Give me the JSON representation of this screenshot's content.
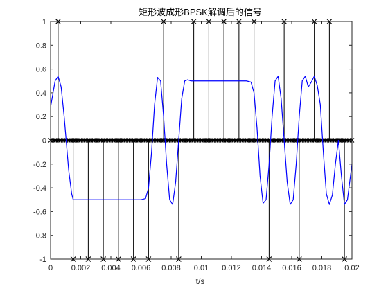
{
  "chart_data": {
    "type": "line",
    "title": "矩形波成形BPSK解调后的信号",
    "xlabel": "t/s",
    "ylabel": "",
    "xlim": [
      0,
      0.02
    ],
    "ylim": [
      -1,
      1
    ],
    "xticks": [
      "0",
      "0.002",
      "0.004",
      "0.006",
      "0.008",
      "0.01",
      "0.012",
      "0.014",
      "0.016",
      "0.018",
      "0.02"
    ],
    "yticks": [
      "1",
      "0.8",
      "0.6",
      "0.4",
      "0.2",
      "0",
      "-0.2",
      "-0.4",
      "-0.6",
      "-0.8",
      "-1"
    ],
    "grid": false,
    "series": [
      {
        "type": "line",
        "color": "#0000ff",
        "x": [
          0,
          0.0003,
          0.0005,
          0.0007,
          0.0009,
          0.001,
          0.0012,
          0.0014,
          0.0015,
          0.002,
          0.0025,
          0.003,
          0.004,
          0.005,
          0.006,
          0.0063,
          0.0065,
          0.0067,
          0.0069,
          0.0071,
          0.0073,
          0.0075,
          0.0077,
          0.0079,
          0.0081,
          0.0083,
          0.0085,
          0.0087,
          0.0089,
          0.0091,
          0.0093,
          0.0095,
          0.0098,
          0.01,
          0.011,
          0.012,
          0.013,
          0.0133,
          0.0135,
          0.0137,
          0.0139,
          0.0141,
          0.0143,
          0.0145,
          0.0147,
          0.0149,
          0.0151,
          0.0153,
          0.0155,
          0.0157,
          0.0159,
          0.0161,
          0.0163,
          0.0165,
          0.0167,
          0.0169,
          0.0171,
          0.0173,
          0.0175,
          0.0177,
          0.0179,
          0.0181,
          0.0183,
          0.0185,
          0.0187,
          0.0189,
          0.0191,
          0.0193,
          0.0195,
          0.0197,
          0.0199,
          0.02
        ],
        "y": [
          0.28,
          0.5,
          0.54,
          0.45,
          0.2,
          0.05,
          -0.25,
          -0.45,
          -0.5,
          -0.5,
          -0.5,
          -0.5,
          -0.5,
          -0.5,
          -0.5,
          -0.49,
          -0.4,
          -0.1,
          0.3,
          0.53,
          0.5,
          0.2,
          -0.2,
          -0.5,
          -0.54,
          -0.35,
          0.0,
          0.35,
          0.5,
          0.51,
          0.5,
          0.5,
          0.5,
          0.5,
          0.5,
          0.5,
          0.5,
          0.49,
          0.4,
          0.1,
          -0.3,
          -0.53,
          -0.5,
          -0.2,
          0.2,
          0.5,
          0.54,
          0.35,
          0.0,
          -0.35,
          -0.54,
          -0.5,
          -0.2,
          0.2,
          0.5,
          0.54,
          0.45,
          0.49,
          0.54,
          0.46,
          0.3,
          -0.1,
          -0.45,
          -0.54,
          -0.46,
          -0.2,
          0.0,
          -0.3,
          -0.54,
          -0.5,
          -0.3,
          -0.2
        ]
      },
      {
        "type": "stem",
        "color": "#000000",
        "x": [
          0.0005,
          0.0015,
          0.0025,
          0.0035,
          0.0045,
          0.0055,
          0.0065,
          0.0075,
          0.0085,
          0.0095,
          0.0105,
          0.0115,
          0.0125,
          0.0135,
          0.0145,
          0.0155,
          0.0165,
          0.0175,
          0.0185,
          0.0195
        ],
        "y": [
          1,
          -1,
          -1,
          -1,
          -1,
          -1,
          -1,
          1,
          -1,
          1,
          1,
          1,
          1,
          1,
          -1,
          1,
          -1,
          1,
          1,
          -1
        ]
      }
    ]
  }
}
